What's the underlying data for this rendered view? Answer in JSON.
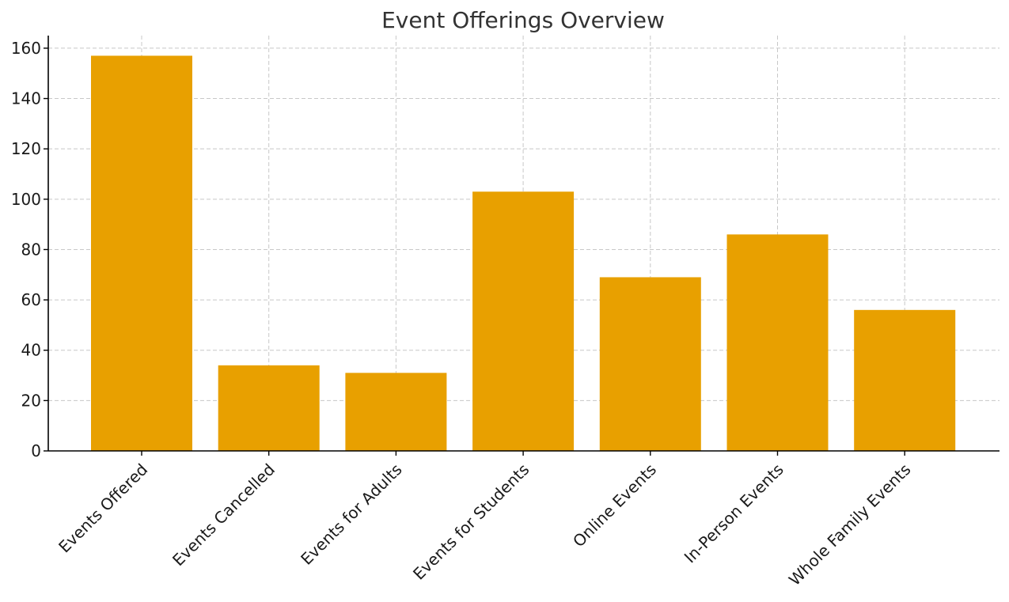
{
  "chart_data": {
    "type": "bar",
    "title": "Event Offerings Overview",
    "xlabel": "",
    "ylabel": "",
    "categories": [
      "Events Offered",
      "Events Cancelled",
      "Events for Adults",
      "Events for Students",
      "Online Events",
      "In-Person Events",
      "Whole Family Events"
    ],
    "values": [
      157,
      34,
      31,
      103,
      69,
      86,
      56
    ],
    "ylim": [
      0,
      165
    ],
    "yticks": [
      0,
      20,
      40,
      60,
      80,
      100,
      120,
      140,
      160
    ],
    "grid": true,
    "bar_color": "#E8A000"
  }
}
